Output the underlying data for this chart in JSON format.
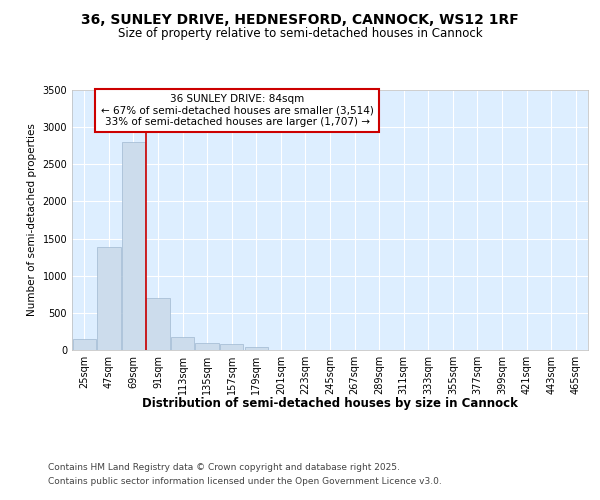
{
  "title": "36, SUNLEY DRIVE, HEDNESFORD, CANNOCK, WS12 1RF",
  "subtitle": "Size of property relative to semi-detached houses in Cannock",
  "xlabel": "Distribution of semi-detached houses by size in Cannock",
  "ylabel": "Number of semi-detached properties",
  "footnote1": "Contains HM Land Registry data © Crown copyright and database right 2025.",
  "footnote2": "Contains public sector information licensed under the Open Government Licence v3.0.",
  "annotation_line1": "36 SUNLEY DRIVE: 84sqm",
  "annotation_line2": "← 67% of semi-detached houses are smaller (3,514)",
  "annotation_line3": "33% of semi-detached houses are larger (1,707) →",
  "bin_labels": [
    "25sqm",
    "47sqm",
    "69sqm",
    "91sqm",
    "113sqm",
    "135sqm",
    "157sqm",
    "179sqm",
    "201sqm",
    "223sqm",
    "245sqm",
    "267sqm",
    "289sqm",
    "311sqm",
    "333sqm",
    "355sqm",
    "377sqm",
    "399sqm",
    "421sqm",
    "443sqm",
    "465sqm"
  ],
  "bin_values": [
    150,
    1390,
    2800,
    700,
    175,
    100,
    75,
    35,
    5,
    1,
    0,
    0,
    0,
    0,
    0,
    0,
    0,
    0,
    0,
    0,
    0
  ],
  "bar_color": "#ccdcec",
  "bar_edge_color": "#a0b8d0",
  "ylim": [
    0,
    3500
  ],
  "yticks": [
    0,
    500,
    1000,
    1500,
    2000,
    2500,
    3000,
    3500
  ],
  "plot_bg_color": "#ddeeff",
  "fig_bg_color": "#ffffff",
  "annotation_box_color": "#ffffff",
  "annotation_border_color": "#cc0000",
  "red_line_color": "#cc0000",
  "title_fontsize": 10,
  "subtitle_fontsize": 8.5,
  "xlabel_fontsize": 8.5,
  "ylabel_fontsize": 7.5,
  "tick_fontsize": 7,
  "annotation_fontsize": 7.5,
  "footnote_fontsize": 6.5,
  "red_line_x": 2.5
}
